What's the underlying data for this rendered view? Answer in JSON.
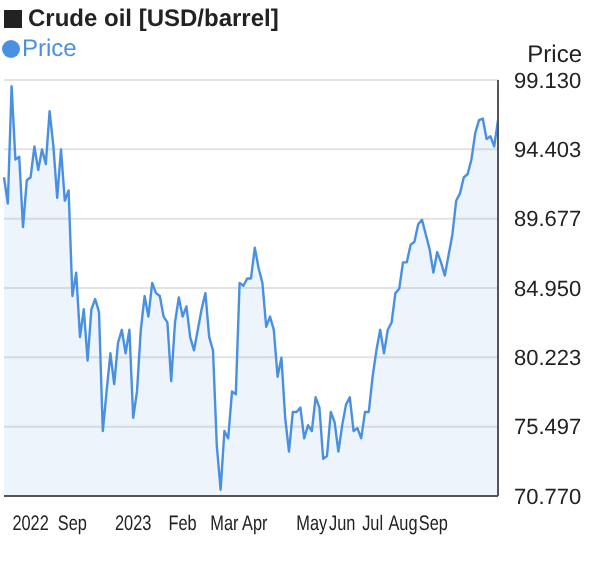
{
  "chart_data": {
    "type": "area",
    "title": "Crude oil [USD/barrel]",
    "ylabel": "Price",
    "categories": [
      null,
      null,
      null,
      null,
      null,
      null,
      null,
      "2022",
      null,
      null,
      null,
      null,
      null,
      null,
      null,
      null,
      null,
      null,
      "Sep",
      null,
      null,
      null,
      null,
      null,
      null,
      null,
      null,
      null,
      null,
      null,
      null,
      null,
      null,
      null,
      "2023",
      null,
      null,
      null,
      null,
      null,
      null,
      null,
      null,
      null,
      null,
      null,
      null,
      "Feb",
      null,
      null,
      null,
      null,
      null,
      null,
      null,
      null,
      null,
      null,
      "Mar",
      null,
      null,
      null,
      null,
      null,
      null,
      null,
      "Apr",
      null,
      null,
      null,
      null,
      null,
      null,
      null,
      null,
      null,
      null,
      null,
      null,
      null,
      null,
      "May",
      null,
      null,
      null,
      null,
      null,
      null,
      null,
      "Jun",
      null,
      null,
      null,
      null,
      null,
      null,
      null,
      "Jul",
      null,
      null,
      null,
      null,
      null,
      null,
      null,
      "Aug",
      null,
      null,
      null,
      null,
      null,
      null,
      null,
      "Sep",
      null,
      null,
      null,
      null,
      null,
      null,
      null,
      null,
      null,
      null,
      null,
      null,
      null,
      null,
      null,
      null,
      null
    ],
    "series": [
      {
        "name": "Price",
        "color": "#4a90e2",
        "values": [
          92.5,
          90.7,
          98.7,
          93.7,
          93.9,
          89.1,
          92.3,
          92.5,
          94.6,
          93.0,
          94.4,
          93.4,
          97.0,
          94.6,
          91.1,
          94.4,
          90.9,
          91.6,
          84.4,
          86.0,
          81.6,
          83.5,
          80.0,
          83.5,
          84.2,
          83.3,
          75.2,
          77.9,
          80.5,
          78.4,
          81.2,
          82.1,
          80.5,
          82.1,
          76.1,
          77.9,
          82.1,
          84.4,
          83.0,
          85.3,
          84.6,
          84.4,
          83.0,
          82.6,
          78.6,
          82.6,
          84.3,
          83.0,
          83.7,
          81.6,
          80.7,
          82.1,
          83.5,
          84.6,
          81.6,
          80.7,
          74.2,
          71.2,
          75.2,
          74.7,
          77.9,
          77.7,
          85.3,
          85.1,
          85.6,
          85.6,
          87.7,
          86.3,
          85.3,
          82.3,
          83.0,
          82.1,
          78.9,
          80.2,
          76.1,
          73.8,
          76.5,
          76.5,
          76.8,
          74.7,
          75.6,
          75.2,
          77.5,
          76.8,
          73.3,
          73.5,
          76.5,
          75.8,
          73.8,
          75.6,
          77.0,
          77.5,
          75.2,
          75.4,
          74.7,
          76.5,
          76.5,
          78.9,
          80.7,
          82.1,
          80.5,
          82.1,
          82.6,
          84.6,
          84.9,
          86.7,
          86.7,
          87.9,
          88.1,
          89.3,
          89.6,
          88.6,
          87.6,
          86.0,
          87.4,
          86.7,
          85.8,
          87.2,
          88.6,
          90.9,
          91.4,
          92.5,
          92.7,
          93.7,
          95.5,
          96.4,
          96.5,
          95.1,
          95.3,
          94.6,
          96.4
        ]
      }
    ],
    "ylim": [
      70.77,
      99.13
    ],
    "yticks": [
      {
        "value": 70.77,
        "label": "70.770"
      },
      75.497,
      80.223,
      {
        "value": 84.95,
        "label": "84.950"
      },
      89.677,
      94.403,
      {
        "value": 99.13,
        "label": "99.130"
      }
    ],
    "grid": "y",
    "legend": "top left",
    "marker": "none"
  }
}
